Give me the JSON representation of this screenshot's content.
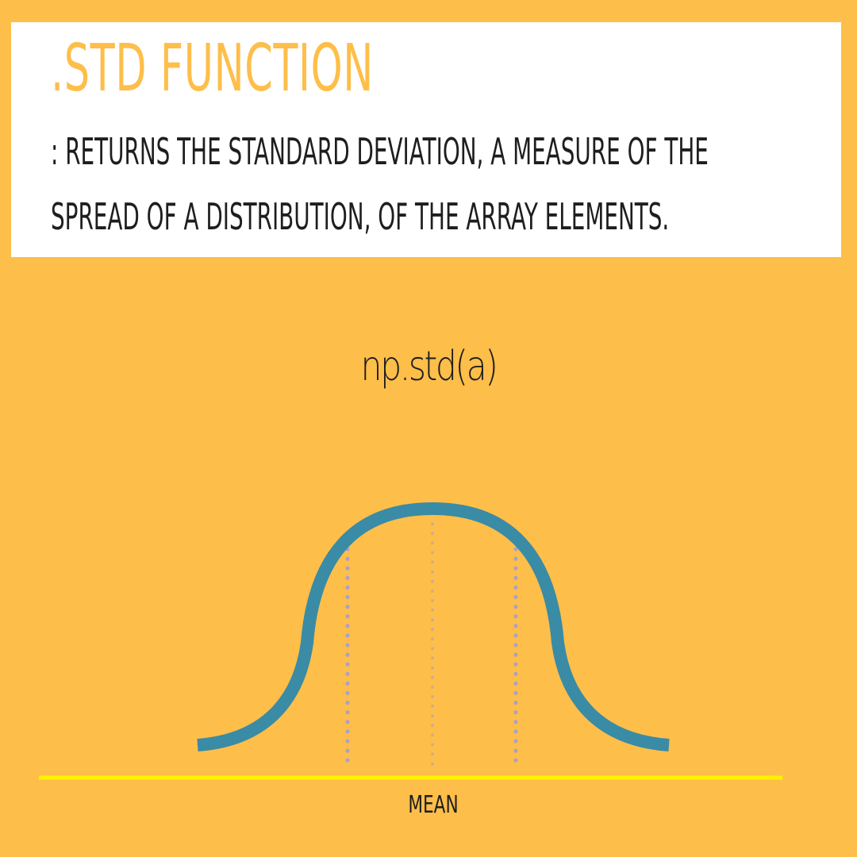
{
  "header": {
    "title": ".STD FUNCTION",
    "description": ": RETURNS THE STANDARD DEVIATION, A MEASURE OF THE SPREAD OF A DISTRIBUTION, OF THE ARRAY ELEMENTS."
  },
  "code_sample": "np.std(a)",
  "diagram": {
    "axis_label": "MEAN",
    "curve_color": "#3A8BA5",
    "axis_color": "#FFF200",
    "marker_color": "#A8A1C9",
    "background_color": "#FEBE4A",
    "title_color": "#FEBE4A"
  }
}
